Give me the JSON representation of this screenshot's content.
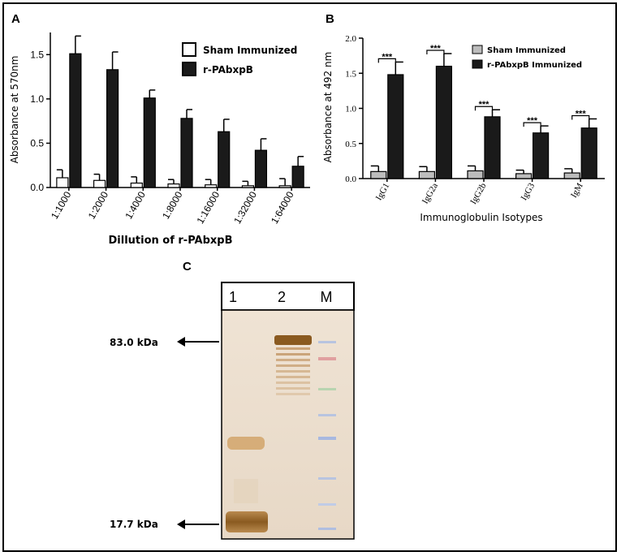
{
  "panels": {
    "a_letter": "A",
    "b_letter": "B",
    "c_letter": "C"
  },
  "chart_data": [
    {
      "type": "bar",
      "panel": "A",
      "ylabel": "Absorbance at 570nm",
      "xlabel": "Dillution of r-PAbxpB",
      "ylim": [
        0,
        1.75
      ],
      "yticks": [
        "0.0",
        "0.5",
        "1.0",
        "1.5"
      ],
      "categories": [
        "1:1000",
        "1:2000",
        "1:4000",
        "1:8000",
        "1:16000",
        "1:32000",
        "1:64000"
      ],
      "legend_position": "top-right",
      "series": [
        {
          "name": "Sham Immunized",
          "color": "#ffffff",
          "values": [
            0.11,
            0.08,
            0.05,
            0.04,
            0.03,
            0.02,
            0.02
          ],
          "errors": [
            0.09,
            0.07,
            0.07,
            0.05,
            0.06,
            0.05,
            0.08
          ]
        },
        {
          "name": "r-PAbxpB",
          "color": "#1a1a1a",
          "values": [
            1.51,
            1.33,
            1.01,
            0.78,
            0.63,
            0.42,
            0.24
          ],
          "errors": [
            0.2,
            0.2,
            0.09,
            0.1,
            0.14,
            0.13,
            0.11
          ]
        }
      ]
    },
    {
      "type": "bar",
      "panel": "B",
      "ylabel": "Absorbance at 492 nm",
      "xlabel": "Immunoglobulin Isotypes",
      "ylim": [
        0,
        2.0
      ],
      "yticks": [
        "0.0",
        "0.5",
        "1.0",
        "1.5",
        "2.0"
      ],
      "categories": [
        "IgG1",
        "IgG2a",
        "IgG2b",
        "IgG3",
        "IgM"
      ],
      "significance": [
        "***",
        "***",
        "***",
        "***",
        "***"
      ],
      "legend_position": "top-right",
      "series": [
        {
          "name": "Sham Immunized",
          "color": "#bcbcbc",
          "values": [
            0.1,
            0.1,
            0.11,
            0.07,
            0.08
          ],
          "errors": [
            0.08,
            0.07,
            0.07,
            0.05,
            0.06
          ]
        },
        {
          "name": "r-PAbxpB Immunized",
          "color": "#1a1a1a",
          "values": [
            1.48,
            1.6,
            0.88,
            0.65,
            0.72
          ],
          "errors": [
            0.18,
            0.18,
            0.1,
            0.1,
            0.13
          ]
        }
      ]
    }
  ],
  "gel": {
    "lanes": [
      "1",
      "2",
      "M"
    ],
    "markers": [
      {
        "label": "83.0  kDa"
      },
      {
        "label": "17.7 kDa"
      }
    ]
  }
}
